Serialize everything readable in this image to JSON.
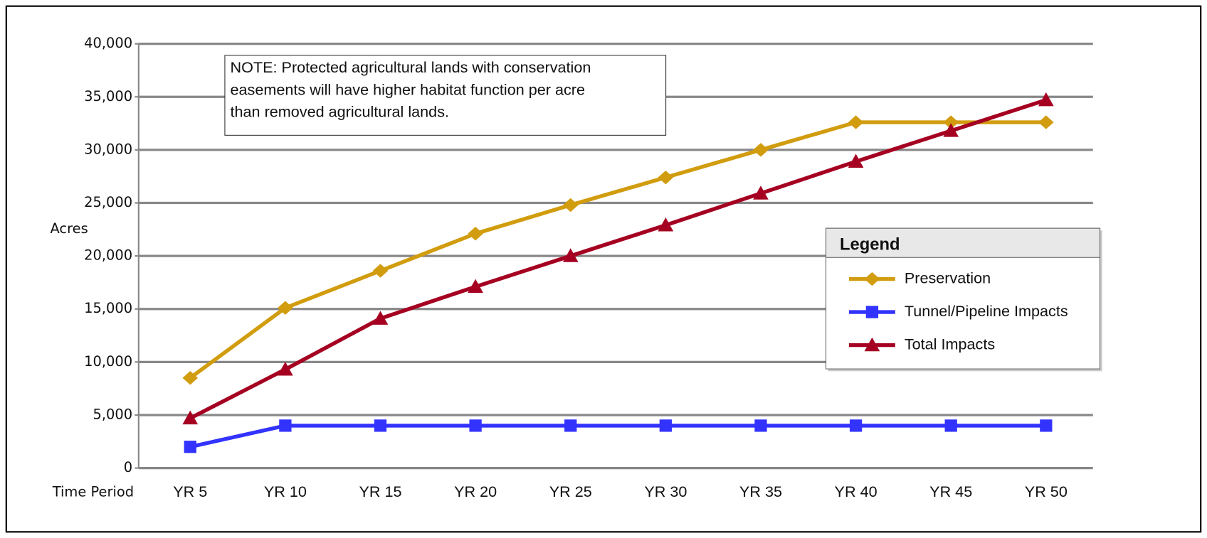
{
  "chart_data": {
    "type": "line",
    "y_label": "Acres",
    "x_label": "Time Period",
    "annotation": [
      "NOTE: Protected agricultural lands with conservation",
      "easements will have higher habitat function per acre",
      "than removed agricultural lands."
    ],
    "legend_title": "Legend",
    "legend_position": "right",
    "grid": true,
    "categories": [
      "YR 5",
      "YR 10",
      "YR 15",
      "YR 20",
      "YR 25",
      "YR 30",
      "YR 35",
      "YR 40",
      "YR 45",
      "YR 50"
    ],
    "ylim": [
      0,
      40000
    ],
    "yticks": [
      0,
      {
        "value": 5000,
        "label": "5,000"
      },
      {
        "value": 10000,
        "label": "10,000"
      },
      {
        "value": 15000,
        "label": "15,000"
      },
      {
        "value": 20000,
        "label": "20,000"
      },
      {
        "value": 25000,
        "label": "25,000"
      },
      {
        "value": 30000,
        "label": "30,000"
      },
      {
        "value": 35000,
        "label": "35,000"
      },
      {
        "value": 40000,
        "label": "40,000"
      }
    ],
    "series": [
      {
        "name": "Preservation",
        "color": "#d19c0e",
        "marker": "diamond",
        "values": [
          8500,
          15100,
          18600,
          22100,
          24800,
          27400,
          30000,
          32600,
          32600,
          32600
        ]
      },
      {
        "name": "Tunnel/Pipeline Impacts",
        "color": "#3333ff",
        "marker": "square",
        "values": [
          2000,
          4000,
          4000,
          4000,
          4000,
          4000,
          4000,
          4000,
          4000,
          4000
        ]
      },
      {
        "name": "Total Impacts",
        "color": "#a50021",
        "marker": "triangle",
        "values": [
          4700,
          9300,
          14100,
          17100,
          20000,
          22900,
          25900,
          28900,
          31800,
          34700
        ]
      }
    ]
  }
}
